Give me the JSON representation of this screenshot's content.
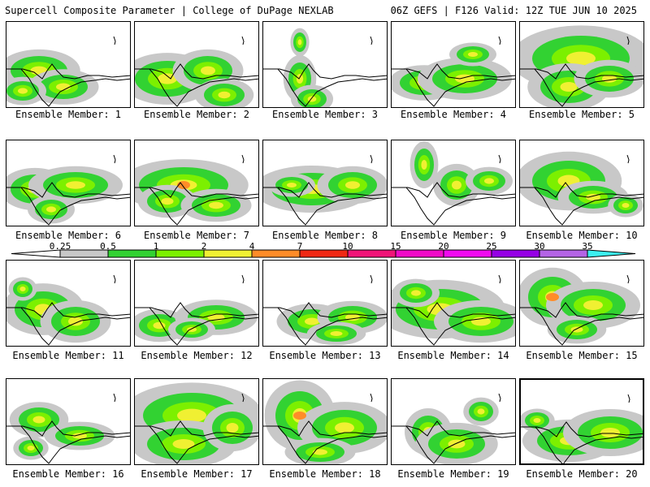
{
  "header": {
    "title": "Supercell Composite Parameter | College of DuPage NEXLAB",
    "run_info": "06Z GEFS | F126 Valid: 12Z TUE JUN 10 2025"
  },
  "colorbar": {
    "labels": [
      "0.25",
      "0.5",
      "1",
      "2",
      "4",
      "7",
      "10",
      "15",
      "20",
      "25",
      "30",
      "35"
    ],
    "colors": [
      "#c8c8c8",
      "#32d232",
      "#7cf000",
      "#f0f032",
      "#ff8c28",
      "#f02814",
      "#f01478",
      "#f00ac8",
      "#f00af0",
      "#9600e6",
      "#b464e6",
      "#3cf0f0"
    ]
  },
  "members": [
    {
      "label": "Ensemble Member: 1"
    },
    {
      "label": "Ensemble Member: 2"
    },
    {
      "label": "Ensemble Member: 3"
    },
    {
      "label": "Ensemble Member: 4"
    },
    {
      "label": "Ensemble Member: 5"
    },
    {
      "label": "Ensemble Member: 6"
    },
    {
      "label": "Ensemble Member: 7"
    },
    {
      "label": "Ensemble Member: 8"
    },
    {
      "label": "Ensemble Member: 9"
    },
    {
      "label": "Ensemble Member: 10"
    },
    {
      "label": "Ensemble Member: 11"
    },
    {
      "label": "Ensemble Member: 12"
    },
    {
      "label": "Ensemble Member: 13"
    },
    {
      "label": "Ensemble Member: 14"
    },
    {
      "label": "Ensemble Member: 15"
    },
    {
      "label": "Ensemble Member: 16"
    },
    {
      "label": "Ensemble Member: 17"
    },
    {
      "label": "Ensemble Member: 18"
    },
    {
      "label": "Ensemble Member: 19"
    },
    {
      "label": "Ensemble Member: 20",
      "selected": true
    }
  ]
}
